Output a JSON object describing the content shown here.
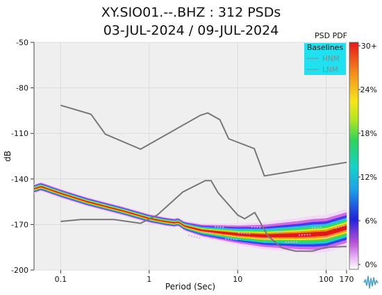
{
  "chart_data": {
    "type": "heatmap",
    "title": "XY.SIO01.--.BHZ : 312 PSDs",
    "subtitle": "03-JUL-2024 / 09-JUL-2024",
    "xlabel": "Period (Sec)",
    "ylabel": "dB",
    "xscale": "log",
    "xlim": [
      0.05,
      170
    ],
    "ylim": [
      -200,
      -50
    ],
    "xticks": [
      0.1,
      1,
      10,
      100,
      170
    ],
    "xtick_labels": [
      "0.1",
      "1",
      "10",
      "100",
      "170"
    ],
    "yticks": [
      -50,
      -80,
      -110,
      -140,
      -170,
      -200
    ],
    "colorbar": {
      "label": "PSD PDF",
      "ticks": [
        "30+",
        "24%",
        "18%",
        "12%",
        "6%",
        "0%"
      ]
    },
    "legend": {
      "title": "Baselines",
      "entries": [
        "HNM",
        "LNM"
      ],
      "position": "top-right"
    },
    "series": [
      {
        "name": "HNM",
        "color": "#777777",
        "points": [
          [
            0.1,
            -91.5
          ],
          [
            0.22,
            -97.4
          ],
          [
            0.32,
            -110.5
          ],
          [
            0.8,
            -120.4
          ],
          [
            3.8,
            -98
          ],
          [
            4.6,
            -96.5
          ],
          [
            6.3,
            -101
          ],
          [
            7.9,
            -113.5
          ],
          [
            15.4,
            -120
          ],
          [
            20,
            -138
          ],
          [
            354.8,
            -126
          ]
        ]
      },
      {
        "name": "LNM",
        "color": "#777777",
        "points": [
          [
            0.1,
            -168
          ],
          [
            0.17,
            -166.7
          ],
          [
            0.4,
            -166.7
          ],
          [
            0.8,
            -169.2
          ],
          [
            1.24,
            -163.7
          ],
          [
            2.4,
            -148.6
          ],
          [
            4.3,
            -141.1
          ],
          [
            5,
            -141.1
          ],
          [
            6,
            -149
          ],
          [
            10,
            -163.8
          ],
          [
            12,
            -166.2
          ],
          [
            15.6,
            -162.1
          ],
          [
            21.9,
            -177.5
          ],
          [
            31.6,
            -185.4
          ],
          [
            45,
            -187.5
          ],
          [
            70,
            -187.5
          ],
          [
            101,
            -185
          ],
          [
            154,
            -184.6
          ],
          [
            170,
            -184.6
          ]
        ]
      }
    ],
    "density_ridge": [
      [
        0.05,
        -146.5
      ],
      [
        0.06,
        -145
      ],
      [
        0.1,
        -149.5
      ],
      [
        0.2,
        -155
      ],
      [
        0.5,
        -161
      ],
      [
        1,
        -166
      ],
      [
        1.5,
        -168
      ],
      [
        2,
        -169
      ],
      [
        2.1,
        -168
      ],
      [
        2.5,
        -171
      ],
      [
        4,
        -174
      ],
      [
        10,
        -176.5
      ],
      [
        20,
        -177.5
      ],
      [
        50,
        -177
      ],
      [
        100,
        -176
      ],
      [
        170,
        -172
      ]
    ]
  }
}
